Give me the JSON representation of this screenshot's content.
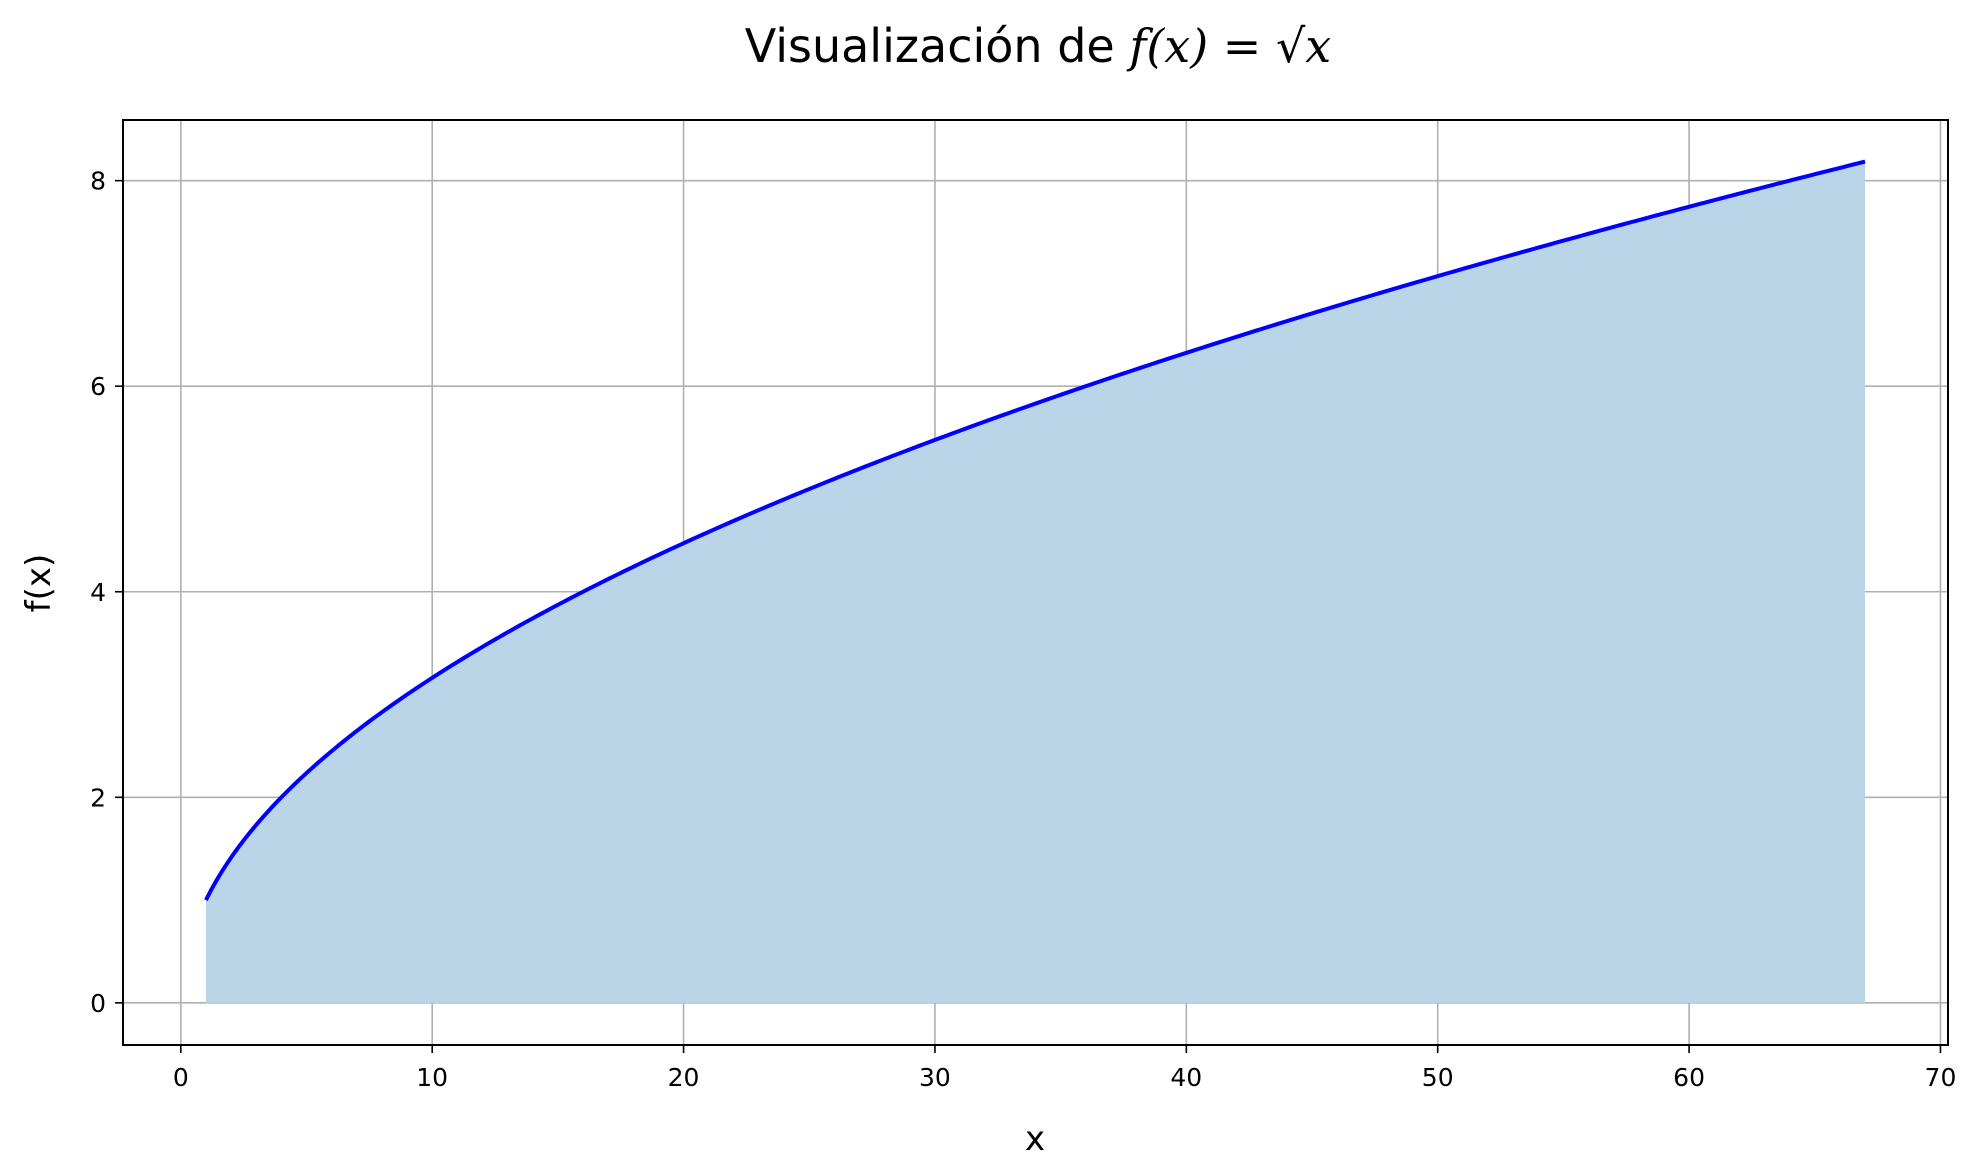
{
  "chart_data": {
    "type": "area",
    "title": {
      "prefix": "Visualización de ",
      "math": "f(x) = √x"
    },
    "xlabel": "x",
    "ylabel": "f(x)",
    "xlim": [
      -2.3,
      70.3
    ],
    "ylim": [
      -0.41,
      8.59
    ],
    "x_ticks": [
      0,
      10,
      20,
      30,
      40,
      50,
      60,
      70
    ],
    "y_ticks": [
      0,
      2,
      4,
      6,
      8
    ],
    "grid": true,
    "function": "sqrt",
    "x_range": [
      1,
      67
    ],
    "line_color": "#0000ff",
    "fill_color": "#bad5e7",
    "series": [
      {
        "x": [
          1,
          2,
          3,
          4,
          5,
          7,
          10,
          15,
          20,
          25,
          30,
          35,
          40,
          45,
          50,
          55,
          60,
          67
        ],
        "y": [
          1.0,
          1.414,
          1.732,
          2.0,
          2.236,
          2.646,
          3.162,
          3.873,
          4.472,
          5.0,
          5.477,
          5.916,
          6.325,
          6.708,
          7.071,
          7.416,
          7.746,
          8.185
        ]
      }
    ]
  }
}
